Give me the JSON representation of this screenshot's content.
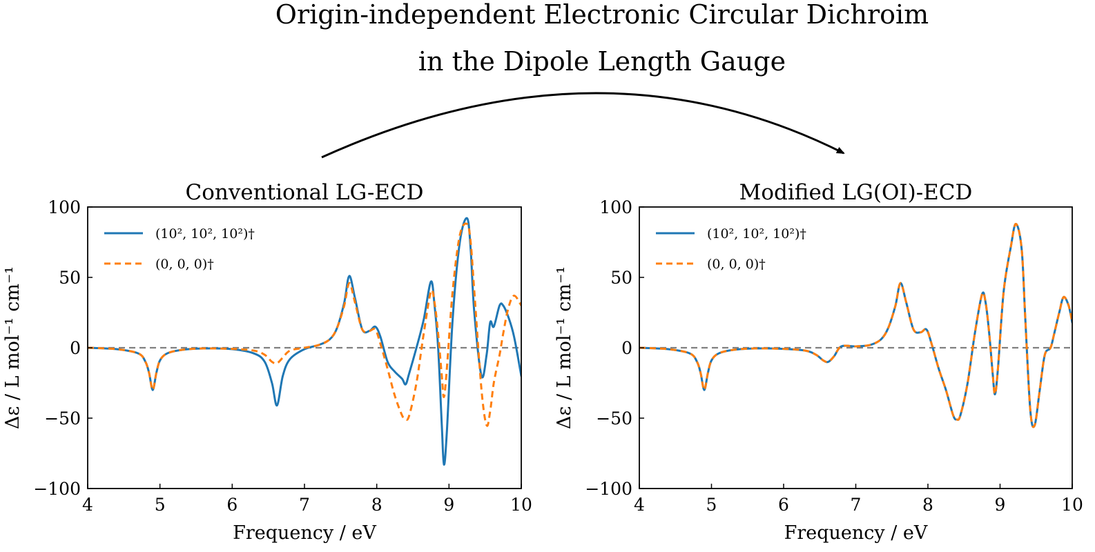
{
  "figure": {
    "title_line1": "Origin-independent Electronic Circular Dichroim",
    "title_line2": "in the Dipole Length Gauge",
    "arrow": "curved-arrow"
  },
  "colors": {
    "blue": "#1f77b4",
    "orange": "#ff7f0e",
    "zero_line": "#808080",
    "axis": "#000000"
  },
  "chart_data": [
    {
      "type": "line",
      "title": "Conventional LG-ECD",
      "xlabel": "Frequency / eV",
      "ylabel": "Δε / L mol⁻¹ cm⁻¹",
      "xlim": [
        4,
        10
      ],
      "ylim": [
        -100,
        100
      ],
      "xticks": [
        4,
        5,
        6,
        7,
        8,
        9,
        10
      ],
      "yticks": [
        -100,
        -50,
        0,
        50,
        100
      ],
      "xtick_labels": [
        "4",
        "5",
        "6",
        "7",
        "8",
        "9",
        "10"
      ],
      "ytick_labels": [
        "−100",
        "−50",
        "0",
        "50",
        "100"
      ],
      "legend_position": "upper-left",
      "zero_line": true,
      "series": [
        {
          "name": "(10², 10², 10²)†",
          "color": "#1f77b4",
          "dash": "solid",
          "x": [
            4.0,
            4.4,
            4.7,
            4.8,
            4.85,
            4.9,
            4.95,
            5.0,
            5.1,
            5.3,
            5.6,
            6.0,
            6.3,
            6.45,
            6.55,
            6.62,
            6.7,
            6.8,
            7.0,
            7.2,
            7.35,
            7.45,
            7.55,
            7.62,
            7.7,
            7.8,
            7.9,
            7.98,
            8.05,
            8.15,
            8.25,
            8.35,
            8.4,
            8.45,
            8.55,
            8.65,
            8.75,
            8.8,
            8.85,
            8.9,
            8.93,
            8.97,
            9.05,
            9.15,
            9.25,
            9.3,
            9.35,
            9.45,
            9.52,
            9.57,
            9.62,
            9.7,
            9.75,
            9.82,
            9.9,
            10.0
          ],
          "y": [
            0,
            -1,
            -4,
            -10,
            -18,
            -30,
            -18,
            -9,
            -4,
            -1.5,
            -0.5,
            -1,
            -4,
            -10,
            -25,
            -41,
            -20,
            -8,
            -1,
            2,
            6,
            14,
            32,
            51,
            35,
            13,
            12,
            15,
            8,
            -10,
            -17,
            -22,
            -26,
            -18,
            0,
            20,
            47,
            30,
            0,
            -55,
            -83,
            -60,
            20,
            75,
            92,
            70,
            25,
            -20,
            -5,
            18,
            15,
            30,
            30,
            22,
            8,
            -20
          ]
        },
        {
          "name": "(0, 0, 0)†",
          "color": "#ff7f0e",
          "dash": "dashed",
          "x": [
            4.0,
            4.4,
            4.7,
            4.8,
            4.85,
            4.9,
            4.95,
            5.0,
            5.1,
            5.3,
            5.6,
            6.0,
            6.3,
            6.45,
            6.55,
            6.62,
            6.7,
            6.8,
            7.0,
            7.2,
            7.35,
            7.45,
            7.55,
            7.62,
            7.7,
            7.8,
            7.9,
            7.98,
            8.05,
            8.15,
            8.25,
            8.35,
            8.4,
            8.45,
            8.55,
            8.65,
            8.75,
            8.8,
            8.85,
            8.9,
            8.93,
            8.97,
            9.05,
            9.15,
            9.25,
            9.3,
            9.35,
            9.45,
            9.52,
            9.57,
            9.62,
            9.7,
            9.75,
            9.82,
            9.9,
            10.0
          ],
          "y": [
            0,
            -1,
            -4,
            -10,
            -18,
            -30,
            -18,
            -9,
            -4,
            -1.5,
            -0.5,
            -0.8,
            -2,
            -5,
            -10,
            -11,
            -7,
            -2,
            0,
            2,
            6,
            14,
            30,
            46,
            32,
            13,
            12,
            13,
            3,
            -15,
            -34,
            -48,
            -51,
            -48,
            -25,
            10,
            40,
            32,
            10,
            -20,
            -35,
            -15,
            40,
            80,
            88,
            75,
            40,
            -30,
            -55,
            -45,
            -25,
            -5,
            10,
            28,
            37,
            30
          ]
        }
      ]
    },
    {
      "type": "line",
      "title": "Modified LG(OI)-ECD",
      "xlabel": "Frequency / eV",
      "ylabel": "Δε / L mol⁻¹ cm⁻¹",
      "xlim": [
        4,
        10
      ],
      "ylim": [
        -100,
        100
      ],
      "xticks": [
        4,
        5,
        6,
        7,
        8,
        9,
        10
      ],
      "yticks": [
        -100,
        -50,
        0,
        50,
        100
      ],
      "xtick_labels": [
        "4",
        "5",
        "6",
        "7",
        "8",
        "9",
        "10"
      ],
      "ytick_labels": [
        "−100",
        "−50",
        "0",
        "50",
        "100"
      ],
      "legend_position": "upper-left",
      "zero_line": true,
      "series": [
        {
          "name": "(10², 10², 10²)†",
          "color": "#1f77b4",
          "dash": "solid",
          "x": [
            4.0,
            4.4,
            4.7,
            4.8,
            4.85,
            4.9,
            4.95,
            5.0,
            5.1,
            5.3,
            5.6,
            6.0,
            6.3,
            6.45,
            6.55,
            6.62,
            6.7,
            6.8,
            7.0,
            7.2,
            7.35,
            7.45,
            7.55,
            7.62,
            7.7,
            7.8,
            7.9,
            7.98,
            8.05,
            8.15,
            8.25,
            8.35,
            8.4,
            8.45,
            8.55,
            8.65,
            8.75,
            8.8,
            8.85,
            8.9,
            8.93,
            8.97,
            9.05,
            9.15,
            9.22,
            9.3,
            9.35,
            9.42,
            9.48,
            9.55,
            9.62,
            9.7,
            9.75,
            9.82,
            9.88,
            9.95,
            10.0
          ],
          "y": [
            0,
            -1,
            -4,
            -10,
            -18,
            -30,
            -18,
            -9,
            -4,
            -1.5,
            -0.5,
            -0.8,
            -2,
            -5,
            -9,
            -10,
            -6,
            1,
            1,
            2,
            6,
            14,
            30,
            46,
            32,
            13,
            11,
            13,
            3,
            -15,
            -30,
            -48,
            -51,
            -48,
            -25,
            10,
            38,
            32,
            10,
            -20,
            -33,
            -15,
            40,
            72,
            88,
            70,
            20,
            -45,
            -55,
            -30,
            -5,
            0,
            10,
            25,
            36,
            30,
            18
          ]
        },
        {
          "name": "(0, 0, 0)†",
          "color": "#ff7f0e",
          "dash": "dashed",
          "x": [
            4.0,
            4.4,
            4.7,
            4.8,
            4.85,
            4.9,
            4.95,
            5.0,
            5.1,
            5.3,
            5.6,
            6.0,
            6.3,
            6.45,
            6.55,
            6.62,
            6.7,
            6.8,
            7.0,
            7.2,
            7.35,
            7.45,
            7.55,
            7.62,
            7.7,
            7.8,
            7.9,
            7.98,
            8.05,
            8.15,
            8.25,
            8.35,
            8.4,
            8.45,
            8.55,
            8.65,
            8.75,
            8.8,
            8.85,
            8.9,
            8.93,
            8.97,
            9.05,
            9.15,
            9.22,
            9.3,
            9.35,
            9.42,
            9.48,
            9.55,
            9.62,
            9.7,
            9.75,
            9.82,
            9.88,
            9.95,
            10.0
          ],
          "y": [
            0,
            -1,
            -4,
            -10,
            -18,
            -30,
            -18,
            -9,
            -4,
            -1.5,
            -0.5,
            -0.8,
            -2,
            -5,
            -9,
            -10,
            -6,
            1,
            1,
            2,
            6,
            14,
            30,
            46,
            32,
            13,
            11,
            13,
            3,
            -15,
            -30,
            -48,
            -51,
            -48,
            -25,
            10,
            38,
            32,
            10,
            -20,
            -33,
            -15,
            40,
            72,
            88,
            70,
            20,
            -45,
            -55,
            -30,
            -5,
            0,
            10,
            25,
            36,
            30,
            18
          ]
        }
      ]
    }
  ]
}
